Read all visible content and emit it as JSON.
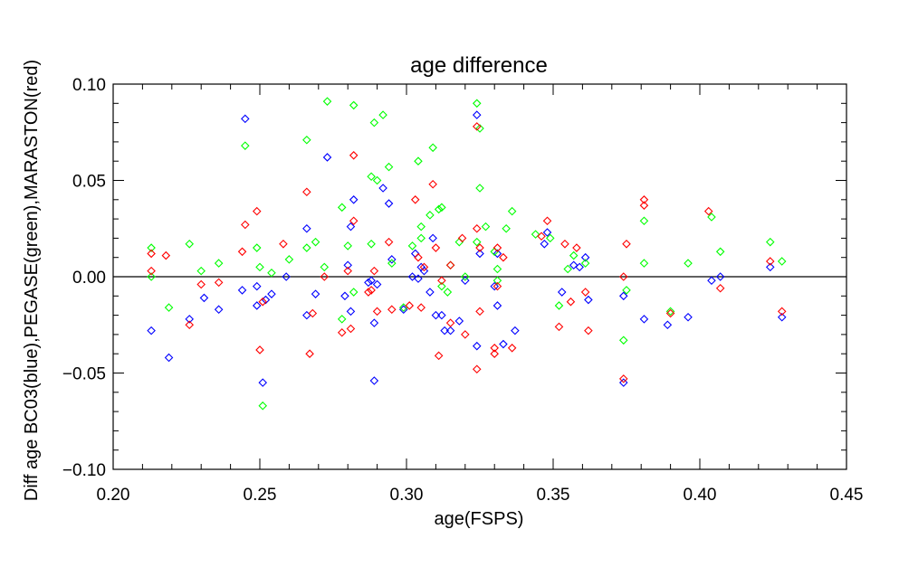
{
  "chart_data": {
    "type": "scatter",
    "title": "age difference",
    "xlabel": "age(FSPS)",
    "ylabel": "Diff age BC03(blue),PEGASE(green),MARASTON(red)",
    "xlim": [
      0.2,
      0.45
    ],
    "ylim": [
      -0.1,
      0.1
    ],
    "xticks": [
      "0.20",
      "0.25",
      "0.30",
      "0.35",
      "0.40",
      "0.45"
    ],
    "yticks": [
      "−0.10",
      "−0.05",
      "0.00",
      "0.05",
      "0.10"
    ],
    "xtick_values": [
      0.2,
      0.25,
      0.3,
      0.35,
      0.4,
      0.45
    ],
    "ytick_values": [
      -0.1,
      -0.05,
      0.0,
      0.05,
      0.1
    ],
    "marker": "diamond",
    "reference_line_y": 0.0,
    "grid": false,
    "series": [
      {
        "color": "#0000ff",
        "points": [
          [
            0.213,
            -0.028
          ],
          [
            0.219,
            -0.042
          ],
          [
            0.226,
            -0.022
          ],
          [
            0.231,
            -0.011
          ],
          [
            0.236,
            -0.017
          ],
          [
            0.244,
            -0.007
          ],
          [
            0.245,
            0.082
          ],
          [
            0.249,
            -0.015
          ],
          [
            0.249,
            -0.005
          ],
          [
            0.251,
            -0.055
          ],
          [
            0.252,
            -0.012
          ],
          [
            0.254,
            -0.009
          ],
          [
            0.259,
            0.0
          ],
          [
            0.266,
            -0.02
          ],
          [
            0.266,
            0.025
          ],
          [
            0.269,
            -0.009
          ],
          [
            0.273,
            0.062
          ],
          [
            0.279,
            -0.01
          ],
          [
            0.28,
            0.006
          ],
          [
            0.281,
            0.026
          ],
          [
            0.282,
            0.04
          ],
          [
            0.281,
            -0.018
          ],
          [
            0.287,
            -0.003
          ],
          [
            0.288,
            -0.002
          ],
          [
            0.289,
            -0.024
          ],
          [
            0.289,
            -0.054
          ],
          [
            0.29,
            -0.004
          ],
          [
            0.292,
            0.046
          ],
          [
            0.294,
            0.038
          ],
          [
            0.295,
            0.009
          ],
          [
            0.299,
            -0.017
          ],
          [
            0.302,
            0.0
          ],
          [
            0.303,
            0.012
          ],
          [
            0.304,
            -0.001
          ],
          [
            0.305,
            0.005
          ],
          [
            0.306,
            0.003
          ],
          [
            0.308,
            -0.008
          ],
          [
            0.309,
            0.02
          ],
          [
            0.31,
            -0.02
          ],
          [
            0.312,
            -0.02
          ],
          [
            0.313,
            -0.028
          ],
          [
            0.315,
            -0.028
          ],
          [
            0.318,
            -0.023
          ],
          [
            0.32,
            -0.002
          ],
          [
            0.324,
            0.084
          ],
          [
            0.324,
            -0.036
          ],
          [
            0.325,
            0.012
          ],
          [
            0.33,
            -0.005
          ],
          [
            0.331,
            -0.015
          ],
          [
            0.331,
            0.012
          ],
          [
            0.333,
            -0.035
          ],
          [
            0.337,
            -0.028
          ],
          [
            0.347,
            0.017
          ],
          [
            0.348,
            0.023
          ],
          [
            0.353,
            -0.008
          ],
          [
            0.357,
            0.006
          ],
          [
            0.359,
            0.005
          ],
          [
            0.361,
            0.01
          ],
          [
            0.362,
            -0.012
          ],
          [
            0.374,
            -0.055
          ],
          [
            0.374,
            -0.01
          ],
          [
            0.381,
            -0.022
          ],
          [
            0.389,
            -0.025
          ],
          [
            0.396,
            -0.021
          ],
          [
            0.404,
            -0.002
          ],
          [
            0.407,
            0.0
          ],
          [
            0.424,
            0.005
          ],
          [
            0.428,
            -0.021
          ]
        ]
      },
      {
        "color": "#00ff00",
        "points": [
          [
            0.213,
            0.015
          ],
          [
            0.213,
            0.0
          ],
          [
            0.219,
            -0.016
          ],
          [
            0.226,
            0.017
          ],
          [
            0.23,
            0.003
          ],
          [
            0.236,
            0.007
          ],
          [
            0.245,
            0.068
          ],
          [
            0.249,
            0.015
          ],
          [
            0.25,
            0.005
          ],
          [
            0.251,
            -0.067
          ],
          [
            0.254,
            0.002
          ],
          [
            0.26,
            0.009
          ],
          [
            0.266,
            0.071
          ],
          [
            0.266,
            0.015
          ],
          [
            0.269,
            0.018
          ],
          [
            0.272,
            0.005
          ],
          [
            0.273,
            0.091
          ],
          [
            0.278,
            0.036
          ],
          [
            0.278,
            -0.022
          ],
          [
            0.28,
            0.016
          ],
          [
            0.282,
            0.089
          ],
          [
            0.282,
            -0.008
          ],
          [
            0.288,
            0.017
          ],
          [
            0.288,
            0.052
          ],
          [
            0.289,
            0.08
          ],
          [
            0.29,
            0.05
          ],
          [
            0.292,
            0.084
          ],
          [
            0.294,
            0.057
          ],
          [
            0.295,
            0.007
          ],
          [
            0.299,
            -0.016
          ],
          [
            0.302,
            0.016
          ],
          [
            0.304,
            0.06
          ],
          [
            0.305,
            0.026
          ],
          [
            0.305,
            0.02
          ],
          [
            0.308,
            0.032
          ],
          [
            0.309,
            0.067
          ],
          [
            0.311,
            0.035
          ],
          [
            0.312,
            0.036
          ],
          [
            0.312,
            -0.005
          ],
          [
            0.314,
            -0.008
          ],
          [
            0.315,
            0.006
          ],
          [
            0.318,
            0.018
          ],
          [
            0.32,
            0.0
          ],
          [
            0.324,
            0.09
          ],
          [
            0.324,
            0.018
          ],
          [
            0.325,
            0.046
          ],
          [
            0.325,
            0.077
          ],
          [
            0.327,
            0.026
          ],
          [
            0.33,
            0.013
          ],
          [
            0.331,
            -0.002
          ],
          [
            0.331,
            0.004
          ],
          [
            0.334,
            0.025
          ],
          [
            0.336,
            0.034
          ],
          [
            0.344,
            0.022
          ],
          [
            0.349,
            0.02
          ],
          [
            0.352,
            -0.015
          ],
          [
            0.355,
            0.004
          ],
          [
            0.357,
            0.011
          ],
          [
            0.361,
            0.007
          ],
          [
            0.374,
            -0.033
          ],
          [
            0.375,
            -0.007
          ],
          [
            0.381,
            0.007
          ],
          [
            0.381,
            0.029
          ],
          [
            0.39,
            -0.018
          ],
          [
            0.396,
            0.007
          ],
          [
            0.404,
            0.031
          ],
          [
            0.407,
            0.013
          ],
          [
            0.424,
            0.018
          ],
          [
            0.428,
            0.008
          ]
        ]
      },
      {
        "color": "#ff0000",
        "points": [
          [
            0.213,
            0.012
          ],
          [
            0.213,
            0.003
          ],
          [
            0.218,
            0.011
          ],
          [
            0.226,
            -0.025
          ],
          [
            0.23,
            -0.004
          ],
          [
            0.236,
            -0.003
          ],
          [
            0.244,
            0.013
          ],
          [
            0.245,
            0.027
          ],
          [
            0.249,
            0.034
          ],
          [
            0.25,
            -0.038
          ],
          [
            0.251,
            -0.013
          ],
          [
            0.258,
            0.017
          ],
          [
            0.266,
            0.044
          ],
          [
            0.267,
            -0.04
          ],
          [
            0.268,
            -0.019
          ],
          [
            0.272,
            0.0
          ],
          [
            0.278,
            -0.029
          ],
          [
            0.28,
            0.003
          ],
          [
            0.281,
            -0.027
          ],
          [
            0.282,
            0.063
          ],
          [
            0.282,
            0.029
          ],
          [
            0.287,
            -0.008
          ],
          [
            0.288,
            -0.007
          ],
          [
            0.289,
            0.003
          ],
          [
            0.29,
            -0.018
          ],
          [
            0.294,
            0.018
          ],
          [
            0.295,
            -0.017
          ],
          [
            0.301,
            -0.015
          ],
          [
            0.303,
            0.04
          ],
          [
            0.304,
            0.01
          ],
          [
            0.305,
            -0.016
          ],
          [
            0.306,
            0.005
          ],
          [
            0.309,
            0.048
          ],
          [
            0.31,
            0.015
          ],
          [
            0.311,
            -0.041
          ],
          [
            0.312,
            -0.002
          ],
          [
            0.315,
            -0.024
          ],
          [
            0.315,
            0.006
          ],
          [
            0.319,
            0.02
          ],
          [
            0.32,
            -0.03
          ],
          [
            0.324,
            0.078
          ],
          [
            0.324,
            0.025
          ],
          [
            0.324,
            -0.048
          ],
          [
            0.325,
            0.015
          ],
          [
            0.325,
            -0.018
          ],
          [
            0.33,
            -0.037
          ],
          [
            0.33,
            -0.04
          ],
          [
            0.331,
            -0.005
          ],
          [
            0.331,
            0.015
          ],
          [
            0.333,
            0.01
          ],
          [
            0.336,
            -0.037
          ],
          [
            0.346,
            0.021
          ],
          [
            0.348,
            0.029
          ],
          [
            0.352,
            -0.026
          ],
          [
            0.354,
            0.017
          ],
          [
            0.356,
            -0.013
          ],
          [
            0.358,
            0.015
          ],
          [
            0.361,
            -0.008
          ],
          [
            0.362,
            -0.028
          ],
          [
            0.374,
            -0.053
          ],
          [
            0.374,
            0.0
          ],
          [
            0.375,
            0.017
          ],
          [
            0.381,
            0.04
          ],
          [
            0.381,
            0.037
          ],
          [
            0.39,
            -0.019
          ],
          [
            0.403,
            0.034
          ],
          [
            0.407,
            -0.006
          ],
          [
            0.424,
            0.008
          ],
          [
            0.428,
            -0.018
          ]
        ]
      }
    ]
  }
}
